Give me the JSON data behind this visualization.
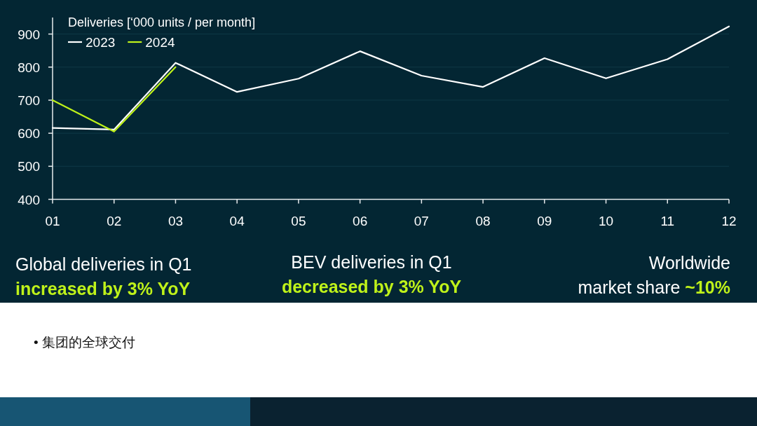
{
  "chart_data": {
    "type": "line",
    "legend_title": "Deliveries [‘000 units / per month]",
    "categories": [
      "01",
      "02",
      "03",
      "04",
      "05",
      "06",
      "07",
      "08",
      "09",
      "10",
      "11",
      "12"
    ],
    "series": [
      {
        "name": "2023",
        "color": "#ffffff",
        "values": [
          616,
          611,
          813,
          725,
          765,
          848,
          774,
          740,
          827,
          766,
          824,
          923
        ]
      },
      {
        "name": "2024",
        "color": "#bff21a",
        "values": [
          700,
          605,
          800,
          null,
          null,
          null,
          null,
          null,
          null,
          null,
          null,
          null
        ]
      }
    ],
    "ylim": [
      400,
      950
    ],
    "yticks": [
      400,
      500,
      600,
      700,
      800,
      900
    ],
    "grid": "y",
    "legend": "top left",
    "annotations": [
      "Global deliveries in Q1\n**increased by 3% YoY**",
      "BEV deliveries in Q1\n**decreased by 3% YoY**",
      "Worldwide\nmarket share **~10%**",
      "• 集团的全球交付"
    ]
  }
}
